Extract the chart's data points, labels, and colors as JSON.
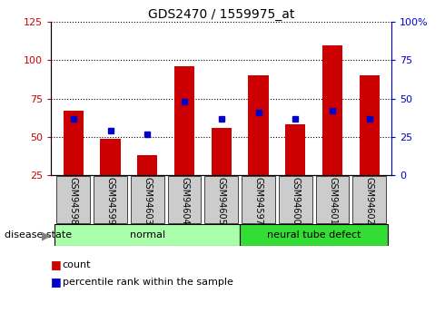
{
  "title": "GDS2470 / 1559975_at",
  "categories": [
    "GSM94598",
    "GSM94599",
    "GSM94603",
    "GSM94604",
    "GSM94605",
    "GSM94597",
    "GSM94600",
    "GSM94601",
    "GSM94602"
  ],
  "red_values": [
    67,
    49,
    38,
    96,
    56,
    90,
    58,
    110,
    90
  ],
  "blue_values_left": [
    62,
    54,
    52,
    73,
    62,
    66,
    62,
    67,
    62
  ],
  "groups": [
    {
      "label": "normal",
      "start": 0,
      "end": 5
    },
    {
      "label": "neural tube defect",
      "start": 5,
      "end": 9
    }
  ],
  "left_ylim": [
    25,
    125
  ],
  "left_yticks": [
    25,
    50,
    75,
    100,
    125
  ],
  "right_ylim": [
    0,
    100
  ],
  "right_yticks": [
    0,
    25,
    50,
    75,
    100
  ],
  "right_yticklabels": [
    "0",
    "25",
    "50",
    "75",
    "100%"
  ],
  "bar_color": "#CC0000",
  "blue_color": "#0000CC",
  "group_bg_normal": "#AAFFAA",
  "group_bg_defect": "#33DD33",
  "tick_label_bg": "#CCCCCC",
  "legend_items": [
    "count",
    "percentile rank within the sample"
  ],
  "disease_state_label": "disease state",
  "grid_color": "black",
  "bar_width": 0.55
}
